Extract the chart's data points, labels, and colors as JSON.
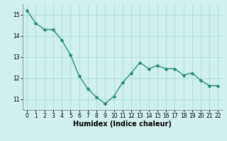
{
  "x": [
    0,
    1,
    2,
    3,
    4,
    5,
    6,
    7,
    8,
    9,
    10,
    11,
    12,
    13,
    14,
    15,
    16,
    17,
    18,
    19,
    20,
    21,
    22
  ],
  "y": [
    15.2,
    14.6,
    14.3,
    14.3,
    13.8,
    13.1,
    12.1,
    11.5,
    11.1,
    10.8,
    11.15,
    11.8,
    12.25,
    12.75,
    12.45,
    12.6,
    12.45,
    12.45,
    12.15,
    12.25,
    11.9,
    11.65,
    11.65
  ],
  "line_color": "#2e8b7a",
  "marker": "D",
  "marker_size": 2.0,
  "linewidth": 1.0,
  "bg_color": "#cff0ec",
  "grid_color": "#aaddd8",
  "xlabel": "Humidex (Indice chaleur)",
  "xlim": [
    -0.5,
    22.5
  ],
  "ylim": [
    10.5,
    15.5
  ],
  "yticks": [
    11,
    12,
    13,
    14,
    15
  ],
  "xticks": [
    0,
    1,
    2,
    3,
    4,
    5,
    6,
    7,
    8,
    9,
    10,
    11,
    12,
    13,
    14,
    15,
    16,
    17,
    18,
    19,
    20,
    21,
    22
  ],
  "tick_fontsize": 5.5,
  "xlabel_fontsize": 7.0,
  "xlabel_fontweight": "bold"
}
